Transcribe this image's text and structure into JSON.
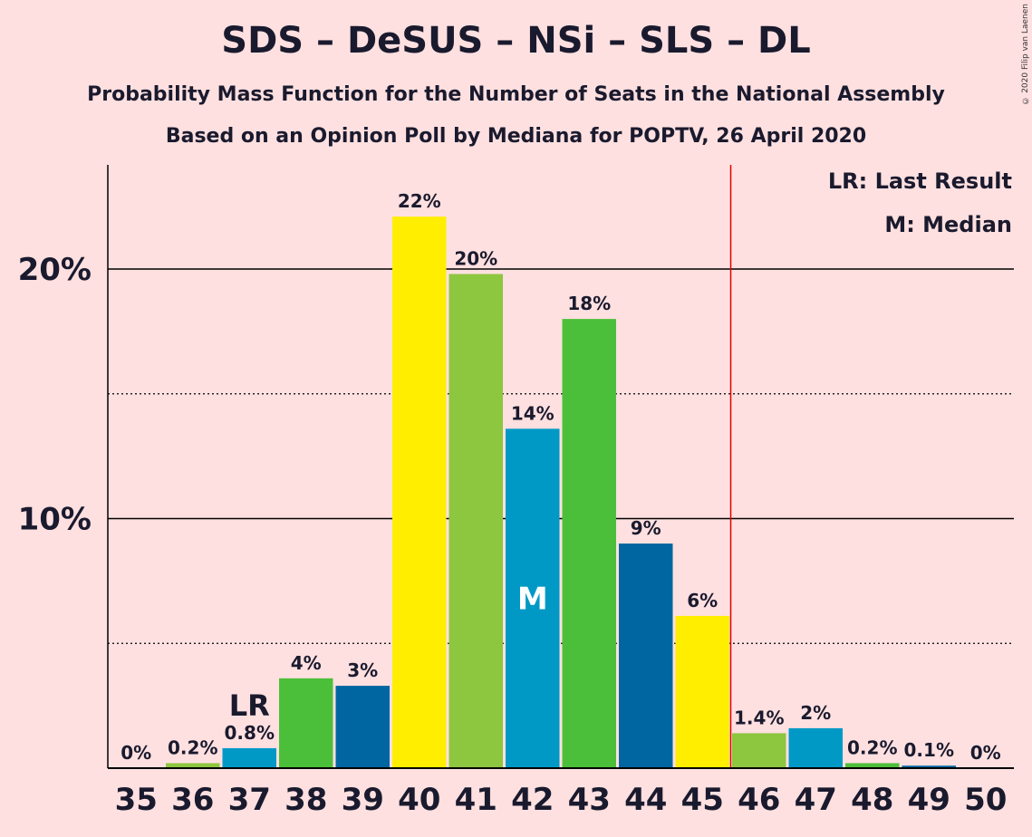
{
  "header": {
    "title": "SDS – DeSUS – NSi – SLS – DL",
    "subtitle": "Probability Mass Function for the Number of Seats in the National Assembly",
    "subtitle2": "Based on an Opinion Poll by Mediana for POPTV, 26 April 2020",
    "copyright": "© 2020 Filip van Laenen"
  },
  "legend": {
    "last_result": "LR: Last Result",
    "median": "M: Median"
  },
  "chart_data": {
    "type": "bar",
    "categories": [
      "35",
      "36",
      "37",
      "38",
      "39",
      "40",
      "41",
      "42",
      "43",
      "44",
      "45",
      "46",
      "47",
      "48",
      "49",
      "50"
    ],
    "values": [
      0,
      0.2,
      0.8,
      3.6,
      3.3,
      22.1,
      19.8,
      13.6,
      18.0,
      9.0,
      6.1,
      1.4,
      1.6,
      0.2,
      0.1,
      0
    ],
    "data_labels": [
      "0%",
      "0.2%",
      "0.8%",
      "4%",
      "3%",
      "22%",
      "20%",
      "14%",
      "18%",
      "9%",
      "6%",
      "1.4%",
      "2%",
      "0.2%",
      "0.1%",
      "0%"
    ],
    "colors": [
      "#8dc63f",
      "#8dc63f",
      "#0099c6",
      "#4cbf3a",
      "#0066a1",
      "#ffee00",
      "#8dc63f",
      "#0099c6",
      "#4cbf3a",
      "#0066a1",
      "#ffee00",
      "#8dc63f",
      "#0099c6",
      "#4cbf3a",
      "#0066a1",
      "#ffee00"
    ],
    "ylim": [
      0,
      24
    ],
    "yticks": [
      {
        "value": 10,
        "label": "10%"
      },
      {
        "value": 20,
        "label": "20%"
      }
    ],
    "minor_gridlines": [
      5,
      15
    ],
    "last_result_seat": "37",
    "last_result_label": "LR",
    "median_seat": "42",
    "median_label": "M",
    "majority_line_after": "45",
    "majority_line_color": "#e00000"
  }
}
